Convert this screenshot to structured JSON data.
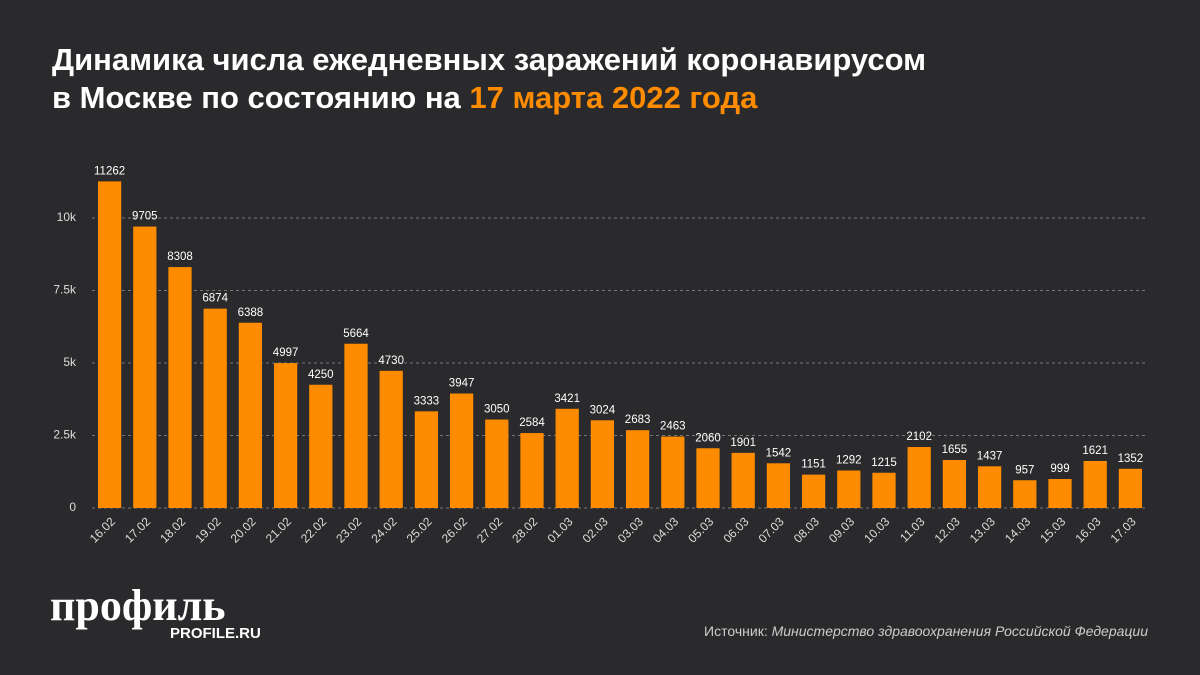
{
  "chart_data": {
    "type": "bar",
    "title": "Динамика числа ежедневных заражений коронавирусом в Москве по состоянию на",
    "title_highlight": "17 марта 2022 года",
    "categories": [
      "16.02",
      "17.02",
      "18.02",
      "19.02",
      "20.02",
      "21.02",
      "22.02",
      "23.02",
      "24.02",
      "25.02",
      "26.02",
      "27.02",
      "28.02",
      "01.03",
      "02.03",
      "03.03",
      "04.03",
      "05.03",
      "06.03",
      "07.03",
      "08.03",
      "09.03",
      "10.03",
      "11.03",
      "12.03",
      "13.03",
      "14.03",
      "15.03",
      "16.03",
      "17.03"
    ],
    "values": [
      11262,
      9705,
      8308,
      6874,
      6388,
      4997,
      4250,
      5664,
      4730,
      3333,
      3947,
      3050,
      2584,
      3421,
      3024,
      2683,
      2463,
      2060,
      1901,
      1542,
      1151,
      1292,
      1215,
      2102,
      1655,
      1437,
      957,
      999,
      1621,
      1352
    ],
    "color": "#ff8c00",
    "ylim": [
      0,
      12000
    ],
    "yticks": [
      0,
      {
        "value": 2500,
        "label": "2.5k"
      },
      {
        "value": 5000,
        "label": "5k"
      },
      {
        "value": 7500,
        "label": "7.5k"
      },
      {
        "value": 10000,
        "label": "10k"
      }
    ],
    "grid": true,
    "source_label": "Источник:",
    "source": "Министерство здравоохранения Российской Федерации"
  },
  "brand": {
    "logo": "профиль",
    "site": "PROFILE.RU"
  }
}
